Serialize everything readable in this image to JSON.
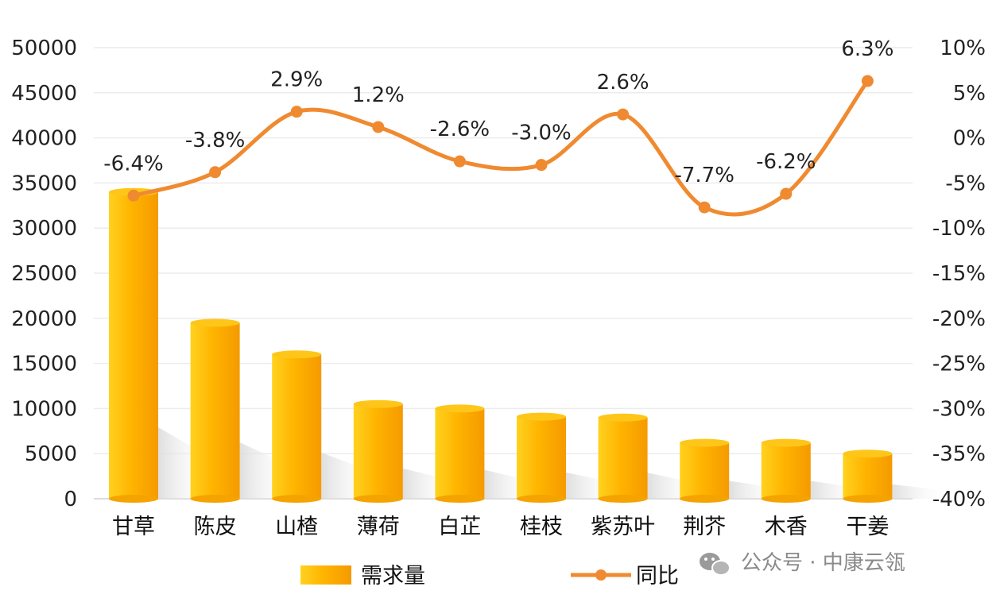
{
  "chart_data": {
    "type": "bar",
    "categories": [
      "甘草",
      "陈皮",
      "山楂",
      "薄荷",
      "白芷",
      "桂枝",
      "紫苏叶",
      "荆芥",
      "木香",
      "干姜"
    ],
    "series": [
      {
        "name": "需求量",
        "type": "bar",
        "axis": "left",
        "values": [
          34000,
          19500,
          16000,
          10500,
          10000,
          9100,
          9000,
          6200,
          6200,
          5000
        ]
      },
      {
        "name": "同比",
        "type": "line",
        "axis": "right",
        "values": [
          -6.4,
          -3.8,
          2.9,
          1.2,
          -2.6,
          -3.0,
          2.6,
          -7.7,
          -6.2,
          6.3
        ],
        "labels": [
          "-6.4%",
          "-3.8%",
          "2.9%",
          "1.2%",
          "-2.6%",
          "-3.0%",
          "2.6%",
          "-7.7%",
          "-6.2%",
          "6.3%"
        ]
      }
    ],
    "y_left": {
      "ylim": [
        0,
        50000
      ],
      "ticks": [
        "0",
        "5000",
        "10000",
        "15000",
        "20000",
        "25000",
        "30000",
        "35000",
        "40000",
        "45000",
        "50000"
      ]
    },
    "y_right": {
      "ylim": [
        -40,
        10
      ],
      "ticks": [
        "-40%",
        "-35%",
        "-30%",
        "-25%",
        "-20%",
        "-15%",
        "-10%",
        "-5%",
        "0%",
        "5%",
        "10%"
      ]
    },
    "grid": true,
    "legend_position": "bottom-center",
    "colors": {
      "bar_light": "#FFD21F",
      "bar_mid": "#FFB400",
      "bar_dark": "#F59A00",
      "line": "#F08A30"
    }
  },
  "watermark": {
    "text": "公众号 · 中康云瓴",
    "icon": "wechat-icon"
  }
}
